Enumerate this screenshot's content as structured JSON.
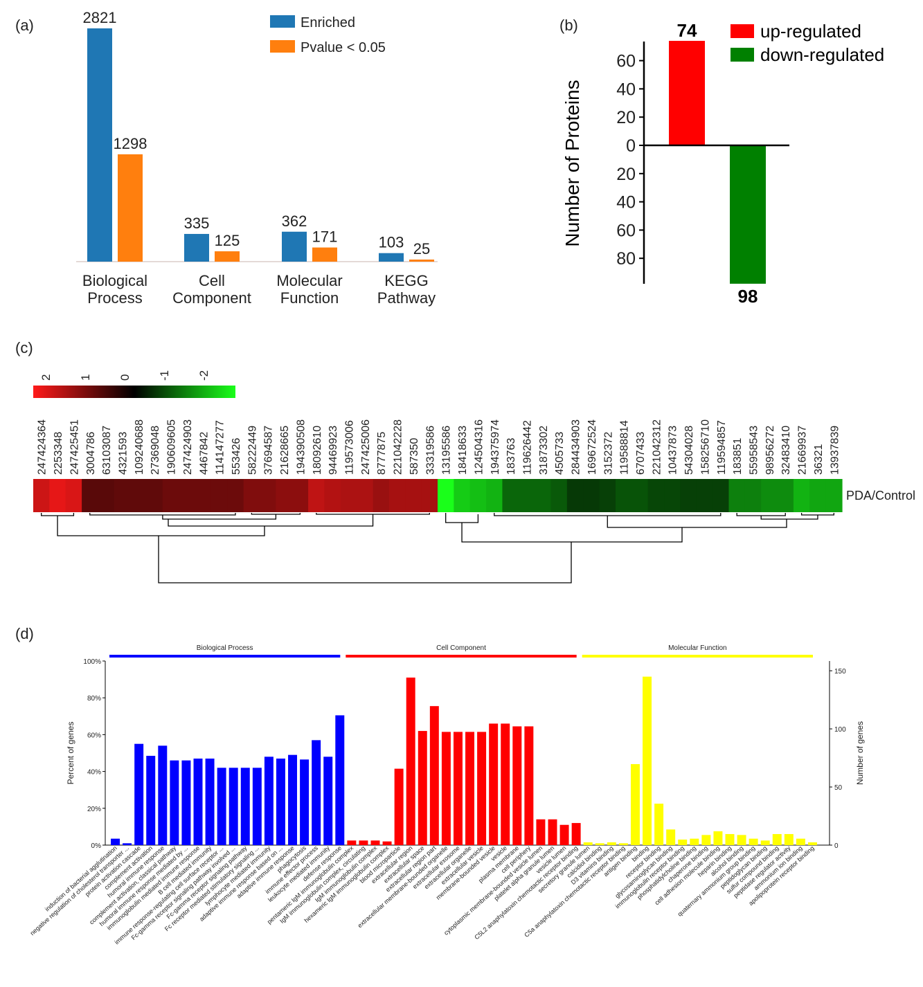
{
  "panels": {
    "a": "(a)",
    "b": "(b)",
    "c": "(c)",
    "d": "(d)"
  },
  "chart_data": [
    {
      "type": "bar",
      "panel": "(a)",
      "categories": [
        "Biological Process",
        "Cell Component",
        "Molecular Function",
        "KEGG Pathway"
      ],
      "category_lines": [
        [
          "Biological",
          "Process"
        ],
        [
          "Cell",
          "Component"
        ],
        [
          "Molecular",
          "Function"
        ],
        [
          "KEGG",
          "Pathway"
        ]
      ],
      "series": [
        {
          "name": "Enriched",
          "color": "#1f77b4",
          "values": [
            2821,
            335,
            362,
            103
          ]
        },
        {
          "name": "Pvalue < 0.05",
          "color": "#ff7f0e",
          "values": [
            1298,
            125,
            171,
            25
          ]
        }
      ],
      "ylim": [
        0,
        2821
      ],
      "legend": "top-right",
      "grid": false
    },
    {
      "type": "bar",
      "panel": "(b)",
      "ylabel": "Number of Proteins",
      "series": [
        {
          "name": "up-regulated",
          "color": "#ff0000",
          "value": 74
        },
        {
          "name": "down-regulated",
          "color": "#008000",
          "value": 98
        }
      ],
      "yticks_up": [
        "60",
        "40",
        "20",
        "0"
      ],
      "yticks_down": [
        "20",
        "40",
        "60",
        "80"
      ],
      "legend": "top-right"
    },
    {
      "type": "heatmap",
      "panel": "(c)",
      "row_label": "PDA/Control",
      "colorbar_ticks": [
        "2",
        "1",
        "0",
        "-1",
        "-2"
      ],
      "colorbar_colors": [
        "#ff1a1a",
        "#000000",
        "#1aff1a"
      ],
      "columns": [
        "247424364",
        "2253348",
        "247425451",
        "3004786",
        "63103087",
        "4321593",
        "109240688",
        "27369048",
        "190609605",
        "247424903",
        "4467842",
        "114147277",
        "553426",
        "58222449",
        "37694587",
        "21628665",
        "194390508",
        "18092610",
        "94469923",
        "119573006",
        "247425006",
        "8777875",
        "221042228",
        "587350",
        "33319586",
        "13195586",
        "18418633",
        "124504316",
        "194375974",
        "183763",
        "119626442",
        "31873302",
        "4505733",
        "284434903",
        "169672524",
        "3152372",
        "119588814",
        "6707433",
        "221042312",
        "10437873",
        "54304028",
        "158256710",
        "119594857",
        "183851",
        "55958543",
        "98956272",
        "32483410",
        "21669937",
        "36321",
        "13937839"
      ],
      "values": [
        1.6,
        1.8,
        1.7,
        0.7,
        0.7,
        0.75,
        0.75,
        0.75,
        0.85,
        0.85,
        0.85,
        0.85,
        0.85,
        1.0,
        1.0,
        1.1,
        1.1,
        1.5,
        1.4,
        1.35,
        1.35,
        1.2,
        1.3,
        1.3,
        1.3,
        -2.0,
        -1.6,
        -1.5,
        -1.4,
        -0.8,
        -0.8,
        -0.8,
        -0.7,
        -0.45,
        -0.45,
        -0.5,
        -0.65,
        -0.65,
        -0.55,
        -0.55,
        -0.5,
        -0.5,
        -0.5,
        -1.0,
        -1.0,
        -1.1,
        -1.1,
        -1.4,
        -1.3,
        -1.3
      ]
    },
    {
      "type": "bar",
      "panel": "(d)",
      "ylabel": "Percent of genes",
      "y2label": "Number of genes",
      "yticks": [
        "0%",
        "20%",
        "40%",
        "60%",
        "80%",
        "100%"
      ],
      "y2ticks": [
        "0",
        "50",
        "100",
        "150"
      ],
      "groups": [
        {
          "name": "Biological Process",
          "color": "#0000ff",
          "terms": [
            "induction of bacterial agglutination",
            "negative regulation of cholesterol transporter ...",
            "protein activation cascade",
            "complement activation",
            "humoral immune response",
            "complement activation, classical pathway",
            "humoral immune response mediated by ...",
            "immunoglobulin mediated immune response",
            "B cell mediated immunity",
            "immune response-regulating cell surface receptor ...",
            "Fc-gamma receptor signaling pathway involved ...",
            "Fc-gamma receptor signaling pathway",
            "Fc receptor mediated stimulatory signaling ...",
            "lymphocyte mediated immunity",
            "adaptive immune response based on ...",
            "adaptive immune response",
            "phagocytosis",
            "immune effector process",
            "leukocyte mediated immunity",
            "defense response"
          ],
          "values": [
            3.5,
            1,
            55,
            48.5,
            54,
            46,
            46,
            47,
            47,
            42,
            42,
            42,
            42,
            48,
            47,
            49,
            46.5,
            57,
            48,
            70.5
          ]
        },
        {
          "name": "Cell Component",
          "color": "#ff0000",
          "terms": [
            "pentameric IgM immunoglobulin complex",
            "IgM immunoglobulin complex, circulating",
            "IgM immunoglobulin complex",
            "hexameric IgM immunoglobulin complex",
            "blood microparticle",
            "extracellular region",
            "extracellular space",
            "extracellular region part",
            "extracellular membrane-bounded organelle",
            "extracellular exosome",
            "extracellular organelle",
            "extracellular vesicle",
            "membrane-bounded vesicle",
            "vesicle",
            "plasma membrane",
            "cell periphery",
            "cytoplasmic membrane-bounded vesicle lumen",
            "platelet alpha granule lumen",
            "vesicle lumen",
            "C5L2 anaphylatoxin chemotactic receptor binding"
          ],
          "values": [
            2.5,
            2.5,
            2.5,
            2,
            41.5,
            91,
            62,
            75.5,
            61.5,
            61.5,
            61.5,
            61.5,
            66,
            66,
            64.5,
            64.5,
            14,
            14,
            11,
            12
          ]
        },
        {
          "name": "Molecular Function",
          "color": "#ffff00",
          "terms": [
            "secretory granule lumen",
            "calcidiol binding",
            "D3 vitamins binding",
            "C5a anaphylatoxin chemotactic receptor binding",
            "antigen binding",
            "binding",
            "receptor binding",
            "glycosaminoglycan binding",
            "immunoglobulin receptor binding",
            "phosphatidylcholine binding",
            "chaperone binding",
            "cell adhesion molecule binding",
            "heparin binding",
            "alcohol binding",
            "quaternary ammonium group binding",
            "peptidoglycan binding",
            "sulfur compound binding",
            "peptidase regulator activity",
            "ammonium ion binding",
            "apolipoprotein receptor binding"
          ],
          "values": [
            1.5,
            1,
            1.5,
            1,
            44,
            91.5,
            22.5,
            8.5,
            3,
            3.5,
            5.5,
            7.5,
            6,
            5.5,
            3.5,
            2.5,
            6,
            6,
            3.5,
            1.5
          ]
        }
      ]
    }
  ]
}
